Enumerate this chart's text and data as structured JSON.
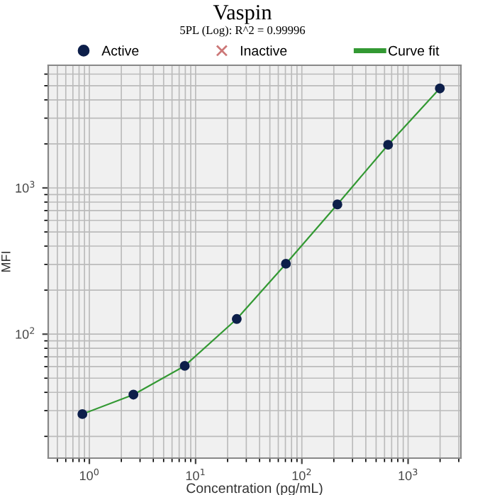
{
  "chart_data": {
    "type": "scatter",
    "title": "Vaspin",
    "subtitle": "5PL (Log): R^2 = 0.99996",
    "xlabel": "Concentration (pg/mL)",
    "ylabel": "MFI",
    "log": "xy",
    "grid": true,
    "legend": "top",
    "marker": "circle",
    "xlim": [
      0.41,
      3140
    ],
    "ylim": [
      14.2,
      6900
    ],
    "xticks": [
      {
        "value": 1,
        "label": "10$^{0}$"
      },
      {
        "value": 10,
        "label": "10$^{1}$"
      },
      {
        "value": 100,
        "label": "10$^{2}$"
      },
      {
        "value": 1000,
        "label": "10$^{3}$"
      }
    ],
    "yticks": [
      {
        "value": 100,
        "label": "10$^{2}$"
      },
      {
        "value": 1000,
        "label": "10$^{3}$"
      }
    ],
    "series": [
      {
        "name": "Active",
        "color": "#0d1f4a",
        "x": [
          0.86,
          2.6,
          7.9,
          24.4,
          70.8,
          216,
          648,
          1990
        ],
        "values": [
          28.4,
          38.6,
          60.7,
          127,
          303,
          771,
          1972,
          4790
        ]
      },
      {
        "name": "Inactive",
        "type": "scatter",
        "marker": "cross",
        "color": "#cc7777"
      },
      {
        "name": "Curve fit",
        "type": "line",
        "color": "#339933",
        "marker": "none",
        "x": [
          0.86,
          2.6,
          7.9,
          24.4,
          70.8,
          216,
          648,
          1990
        ],
        "values": [
          28.4,
          38.6,
          60.7,
          127,
          303,
          771,
          1972,
          4790
        ]
      }
    ]
  }
}
